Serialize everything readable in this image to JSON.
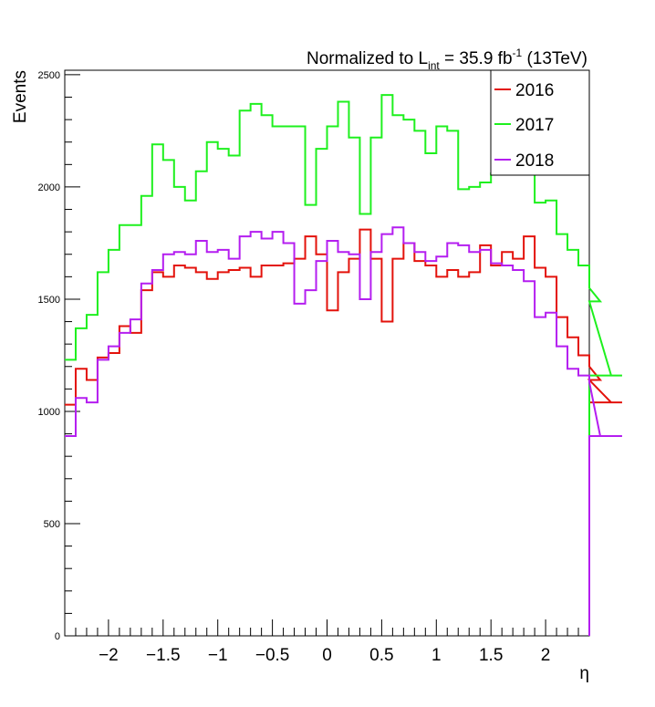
{
  "chart_data": {
    "type": "step-histogram",
    "title": "Normalized to L",
    "title_sub": "int",
    "title_eq": " = 35.9 fb",
    "title_sup": "-1",
    "title_tail": " (13TeV)",
    "xlabel": "η",
    "ylabel": "Events",
    "xlim": [
      -2.4,
      2.4
    ],
    "ylim": [
      0,
      2520
    ],
    "x_ticks": [
      -2,
      -1.5,
      -1,
      -0.5,
      0,
      0.5,
      1,
      1.5,
      2
    ],
    "x_tick_labels": [
      "−2",
      "−1.5",
      "−1",
      "−0.5",
      "0",
      "0.5",
      "1",
      "1.5",
      "2"
    ],
    "y_ticks": [
      0,
      500,
      1000,
      1500,
      2000,
      2500
    ],
    "y_tick_labels": [
      "0",
      "500",
      "1000",
      "1500",
      "2000",
      "2500"
    ],
    "bin_width": 0.1,
    "legend_position": "top-right",
    "series": [
      {
        "name": "2016",
        "color": "#e3120b",
        "values": [
          1030,
          1190,
          1140,
          1240,
          1260,
          1380,
          1350,
          1540,
          1620,
          1600,
          1650,
          1640,
          1620,
          1590,
          1620,
          1630,
          1640,
          1600,
          1650,
          1650,
          1660,
          1680,
          1780,
          1700,
          1450,
          1620,
          1680,
          1810,
          1680,
          1400,
          1680,
          1750,
          1670,
          1650,
          1600,
          1630,
          1600,
          1620,
          1740,
          1650,
          1710,
          1680,
          1780,
          1640,
          1600,
          1420,
          1330,
          1250,
          1200,
          1140,
          1040,
          1040
        ]
      },
      {
        "name": "2017",
        "color": "#1ef01e",
        "values": [
          1230,
          1370,
          1430,
          1620,
          1720,
          1830,
          1830,
          1960,
          2190,
          2120,
          2000,
          1940,
          2070,
          2200,
          2170,
          2140,
          2340,
          2370,
          2320,
          2270,
          2270,
          2270,
          1920,
          2170,
          2270,
          2380,
          2220,
          1880,
          2220,
          2410,
          2320,
          2300,
          2250,
          2150,
          2270,
          2250,
          1990,
          2000,
          2020,
          2060,
          2090,
          2080,
          2100,
          1930,
          1940,
          1790,
          1720,
          1650,
          1550,
          1490,
          1160,
          1160
        ]
      },
      {
        "name": "2018",
        "color": "#b41ef0",
        "values": [
          890,
          1060,
          1040,
          1230,
          1290,
          1350,
          1410,
          1570,
          1630,
          1700,
          1710,
          1700,
          1760,
          1710,
          1720,
          1680,
          1780,
          1800,
          1770,
          1800,
          1750,
          1480,
          1540,
          1670,
          1760,
          1710,
          1700,
          1500,
          1710,
          1790,
          1820,
          1750,
          1710,
          1670,
          1690,
          1750,
          1740,
          1710,
          1720,
          1660,
          1650,
          1630,
          1580,
          1420,
          1440,
          1290,
          1190,
          1160,
          1130,
          890,
          890,
          890
        ]
      }
    ]
  }
}
